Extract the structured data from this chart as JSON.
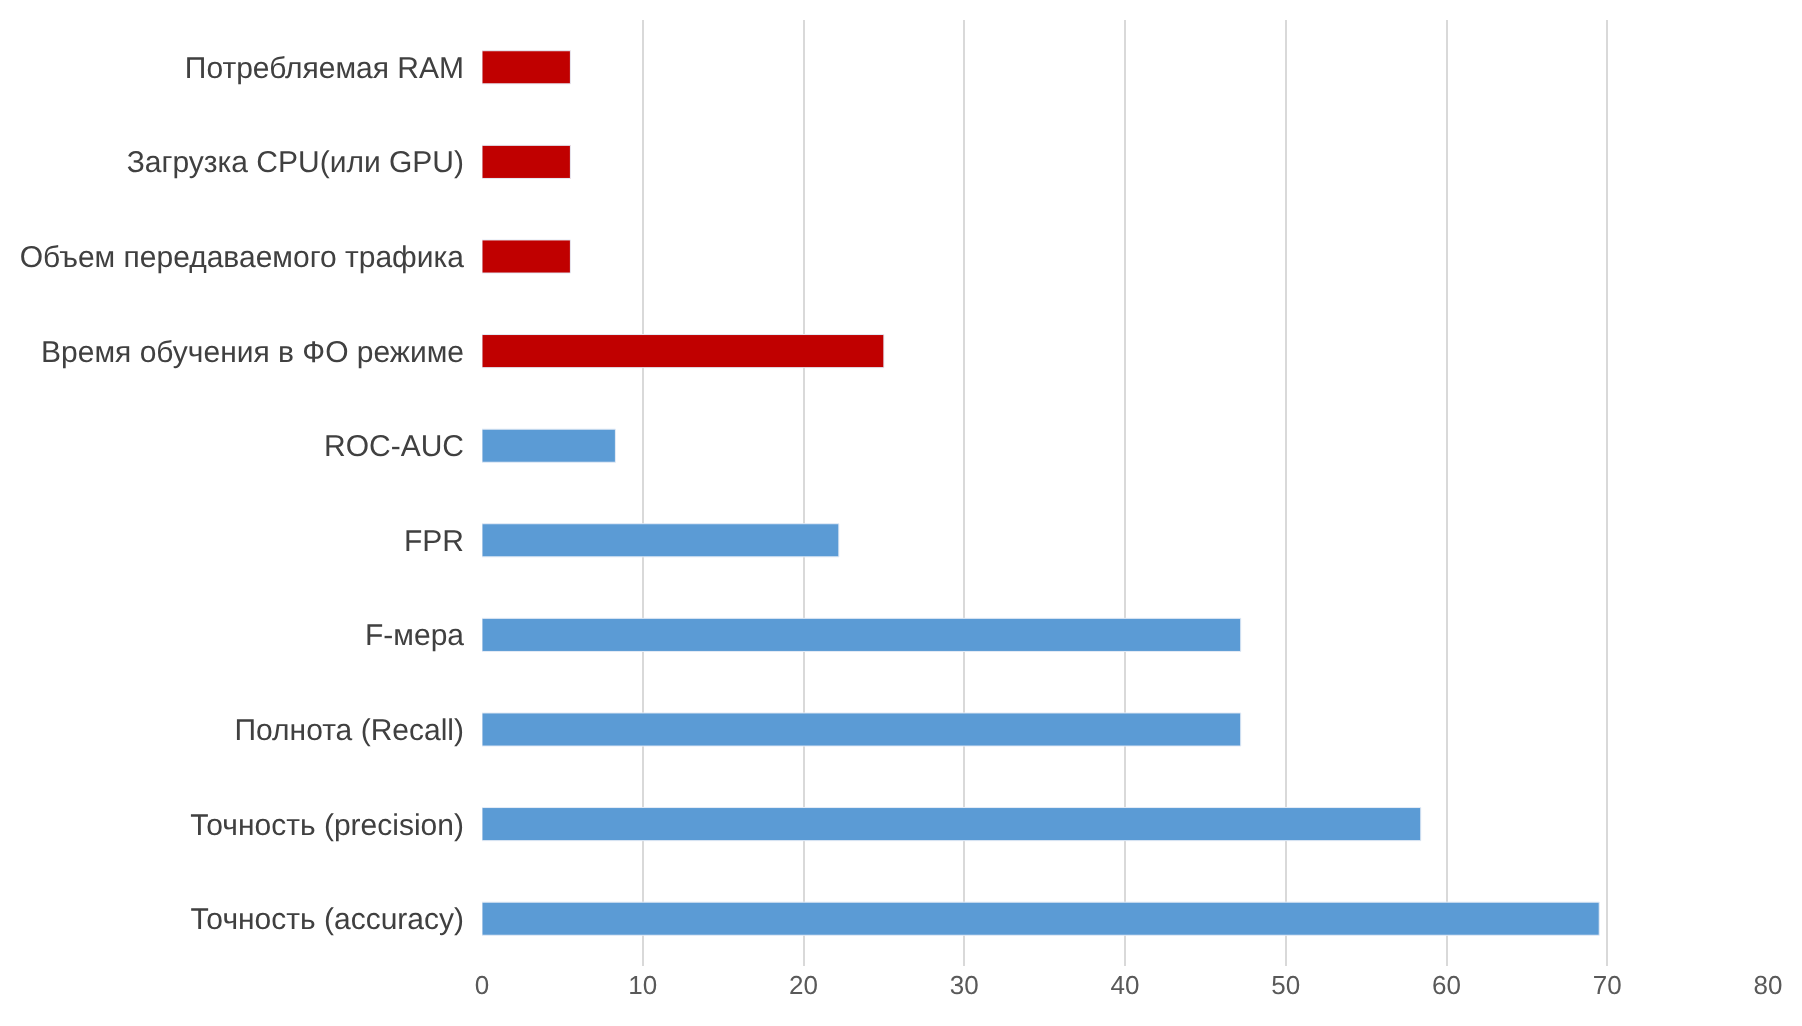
{
  "chart_data": {
    "type": "bar",
    "orientation": "horizontal",
    "categories": [
      "Потребляемая RAM",
      "Загрузка CPU(или GPU)",
      "Объем передаваемого трафика",
      "Время обучения в ФО режиме",
      "ROC-AUC",
      "FPR",
      "F-мера",
      "Полнота (Recall)",
      "Точность (precision)",
      "Точность (accuracy)"
    ],
    "values": [
      5.5,
      5.5,
      5.5,
      25,
      8.3,
      22.2,
      47.2,
      47.2,
      58.4,
      69.5
    ],
    "colors": [
      "#c00000",
      "#c00000",
      "#c00000",
      "#c00000",
      "#5b9bd5",
      "#5b9bd5",
      "#5b9bd5",
      "#5b9bd5",
      "#5b9bd5",
      "#5b9bd5"
    ],
    "xlim": [
      0,
      80
    ],
    "xticks": [
      0,
      10,
      20,
      30,
      40,
      50,
      60,
      70,
      80
    ],
    "grid": "x",
    "legend": false
  }
}
